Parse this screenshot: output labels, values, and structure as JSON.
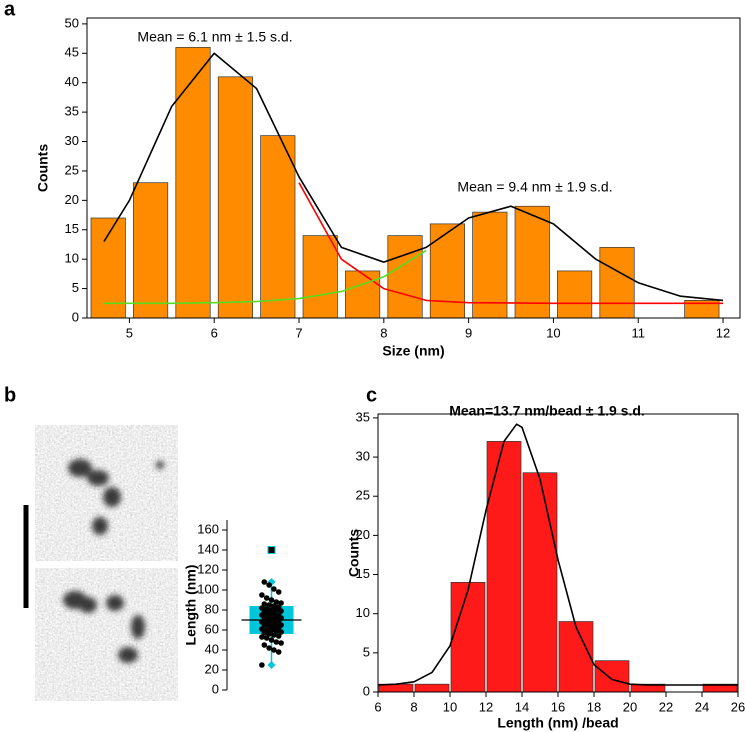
{
  "chart_data": [
    {
      "type": "histogram",
      "panel": "a",
      "xlabel": "Size (nm)",
      "ylabel": "Counts",
      "bins": [
        4.5,
        5,
        5.5,
        6,
        6.5,
        7,
        7.5,
        8,
        8.5,
        9,
        9.5,
        10,
        10.5,
        11,
        11.5,
        12
      ],
      "counts": [
        17,
        23,
        46,
        41,
        31,
        14,
        8,
        14,
        16,
        18,
        19,
        8,
        12,
        0,
        3
      ],
      "color": "#ff8c00",
      "xlim": [
        4.5,
        12.2
      ],
      "xticks": [
        5,
        6,
        7,
        8,
        9,
        10,
        11,
        12
      ],
      "ylim": [
        0,
        51
      ],
      "yticks": [
        0,
        5,
        10,
        15,
        20,
        25,
        30,
        35,
        40,
        45,
        50
      ],
      "curves": [
        {
          "color": "#000000",
          "x": [
            4.7,
            5,
            5.5,
            6,
            6.5,
            7,
            7.5,
            8,
            8.5,
            9,
            9.5,
            10,
            10.5,
            11,
            11.5,
            12
          ],
          "y": [
            13,
            20,
            36,
            45,
            39,
            24,
            12,
            9.5,
            12,
            17,
            19,
            16,
            10,
            6,
            3.7,
            3
          ]
        },
        {
          "color": "#ff0000",
          "x": [
            7,
            7.5,
            8,
            8.5,
            9,
            10,
            11,
            12
          ],
          "y": [
            23,
            10,
            5,
            3,
            2.6,
            2.5,
            2.5,
            2.5
          ]
        },
        {
          "color": "#55dd22",
          "x": [
            4.7,
            5,
            5.5,
            6,
            6.5,
            7,
            7.5,
            8,
            8.5
          ],
          "y": [
            2.5,
            2.5,
            2.5,
            2.6,
            2.8,
            3.3,
            4.5,
            7,
            11.5
          ]
        }
      ],
      "annotations": [
        "Mean = 6.1 nm ± 1.5 s.d.",
        "Mean = 9.4 nm ± 1.9 s.d."
      ]
    },
    {
      "type": "box",
      "panel": "b",
      "ylabel": "Length (nm)",
      "ylim": [
        0,
        170
      ],
      "yticks": [
        0,
        20,
        40,
        60,
        80,
        100,
        120,
        140,
        160
      ],
      "color": "#00c6db",
      "box": {
        "whislo": 25,
        "q1": 56,
        "median": 70,
        "q3": 84,
        "whishi": 108
      },
      "outliers": [
        140
      ],
      "points": [
        25,
        38,
        40,
        42,
        45,
        47,
        48,
        50,
        52,
        53,
        54,
        55,
        56,
        57,
        58,
        59,
        60,
        60,
        61,
        62,
        63,
        64,
        65,
        65,
        66,
        67,
        68,
        68,
        69,
        70,
        70,
        71,
        72,
        72,
        73,
        74,
        75,
        75,
        76,
        77,
        78,
        79,
        80,
        80,
        81,
        82,
        83,
        84,
        85,
        86,
        87,
        88,
        90,
        92,
        95,
        98,
        101,
        105,
        108
      ]
    },
    {
      "type": "histogram",
      "panel": "c",
      "xlabel": "Length (nm) /bead",
      "ylabel": "Counts",
      "bins": [
        6,
        8,
        10,
        12,
        14,
        16,
        18,
        20,
        22,
        24,
        26
      ],
      "counts": [
        1,
        1,
        14,
        32,
        28,
        9,
        4,
        1,
        0,
        1
      ],
      "color": "#ff1a1a",
      "xlim": [
        6,
        26
      ],
      "xticks": [
        6,
        8,
        10,
        12,
        14,
        16,
        18,
        20,
        22,
        24,
        26
      ],
      "ylim": [
        0,
        35.5
      ],
      "yticks": [
        0,
        5,
        10,
        15,
        20,
        25,
        30,
        35
      ],
      "curves": [
        {
          "color": "#000000",
          "x": [
            6,
            7,
            8,
            9,
            10,
            11,
            12,
            13,
            13.7,
            14,
            15,
            16,
            17,
            18,
            19,
            20,
            21,
            22,
            23,
            24,
            25,
            26
          ],
          "y": [
            0.9,
            1,
            1.3,
            2.5,
            5.9,
            13,
            23.2,
            32,
            34.2,
            33.8,
            27.2,
            16.9,
            8.3,
            3.5,
            1.6,
            1,
            0.9,
            0.9,
            0.9,
            0.9,
            0.9,
            0.9
          ]
        }
      ],
      "annotations": [
        "Mean=13.7 nm/bead ± 1.9 s.d."
      ]
    }
  ]
}
